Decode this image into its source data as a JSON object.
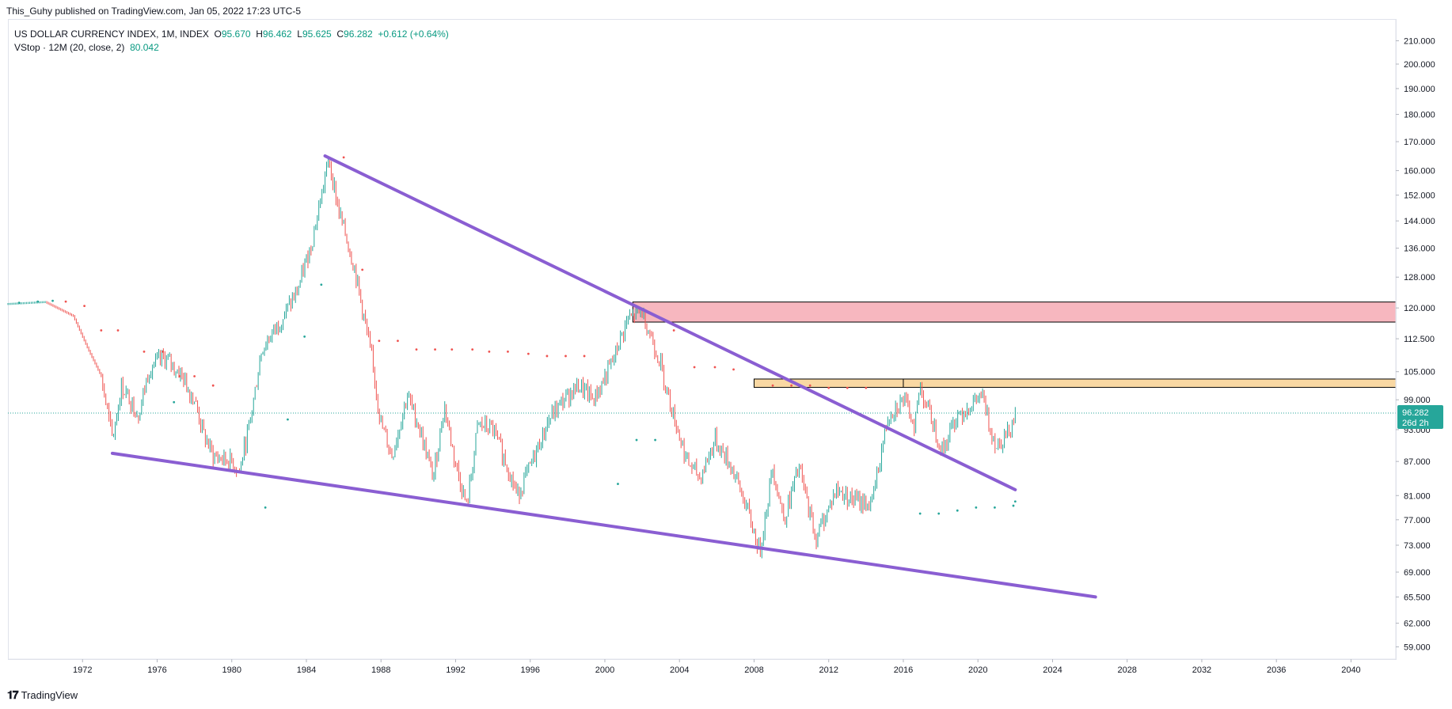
{
  "header": {
    "published_by": "This_Guhy published on TradingView.com, Jan 05, 2022 17:23 UTC-5"
  },
  "legend": {
    "symbol": "US DOLLAR CURRENCY INDEX, 1M, INDEX",
    "o_label": "O",
    "o_value": "95.670",
    "h_label": "H",
    "h_value": "96.462",
    "l_label": "L",
    "l_value": "95.625",
    "c_label": "C",
    "c_value": "96.282",
    "change": "+0.612 (+0.64%)",
    "indicator": "VStop · 12M (20, close, 2)",
    "indicator_value": "80.042"
  },
  "last_price_badge": {
    "price": "96.282",
    "countdown": "26d 2h"
  },
  "footer": {
    "brand": "TradingView",
    "logo": "𝟏𝟕"
  },
  "colors": {
    "up": "#26a69a",
    "down": "#ef5350",
    "trendline": "#8a5ed2",
    "resistance_zone": "#f7b7bf",
    "support_zone": "#f9d8a3",
    "badge": "#26a69a"
  },
  "chart_data": {
    "type": "bar",
    "title": "US DOLLAR CURRENCY INDEX",
    "interval": "1M",
    "scale": "log",
    "ylim": [
      57.5,
      213
    ],
    "xlim": [
      1968.0,
      2042.4
    ],
    "y_ticks": [
      "210.000",
      "200.000",
      "190.000",
      "180.000",
      "170.000",
      "160.000",
      "152.000",
      "144.000",
      "136.000",
      "128.000",
      "120.000",
      "112.500",
      "105.000",
      "99.000",
      "93.000",
      "87.000",
      "81.000",
      "77.000",
      "73.000",
      "69.000",
      "65.500",
      "62.000",
      "59.000"
    ],
    "x_ticks": [
      "1972",
      "1976",
      "1980",
      "1984",
      "1988",
      "1992",
      "1996",
      "2000",
      "2004",
      "2008",
      "2012",
      "2016",
      "2020",
      "2024",
      "2028",
      "2032",
      "2036",
      "2040"
    ],
    "price_path": [
      [
        1968.0,
        121.0
      ],
      [
        1970.0,
        121.5
      ],
      [
        1971.5,
        118.0
      ],
      [
        1972.3,
        110.0
      ],
      [
        1973.0,
        104.0
      ],
      [
        1973.6,
        91.0
      ],
      [
        1974.1,
        102.0
      ],
      [
        1975.0,
        96.0
      ],
      [
        1975.6,
        106.0
      ],
      [
        1976.4,
        108.0
      ],
      [
        1977.2,
        105.0
      ],
      [
        1978.0,
        99.0
      ],
      [
        1978.5,
        92.0
      ],
      [
        1979.0,
        88.0
      ],
      [
        1980.0,
        87.0
      ],
      [
        1980.4,
        85.0
      ],
      [
        1981.0,
        95.0
      ],
      [
        1981.6,
        110.0
      ],
      [
        1982.5,
        116.0
      ],
      [
        1983.5,
        124.0
      ],
      [
        1984.3,
        138.0
      ],
      [
        1985.2,
        164.0
      ],
      [
        1985.7,
        148.0
      ],
      [
        1986.6,
        130.0
      ],
      [
        1987.5,
        108.0
      ],
      [
        1988.0,
        94.0
      ],
      [
        1988.6,
        88.0
      ],
      [
        1989.4,
        100.0
      ],
      [
        1990.0,
        94.0
      ],
      [
        1990.8,
        84.0
      ],
      [
        1991.4,
        98.0
      ],
      [
        1991.9,
        88.0
      ],
      [
        1992.6,
        79.0
      ],
      [
        1993.2,
        94.0
      ],
      [
        1994.0,
        93.0
      ],
      [
        1994.8,
        86.0
      ],
      [
        1995.3,
        81.0
      ],
      [
        1996.0,
        86.0
      ],
      [
        1997.0,
        95.0
      ],
      [
        1997.8,
        99.0
      ],
      [
        1998.6,
        102.0
      ],
      [
        1999.4,
        99.0
      ],
      [
        2000.4,
        107.0
      ],
      [
        2001.2,
        117.0
      ],
      [
        2002.0,
        119.0
      ],
      [
        2002.9,
        108.0
      ],
      [
        2003.6,
        97.0
      ],
      [
        2004.4,
        87.0
      ],
      [
        2005.1,
        84.0
      ],
      [
        2005.9,
        91.0
      ],
      [
        2006.8,
        86.0
      ],
      [
        2007.6,
        79.0
      ],
      [
        2008.3,
        72.0
      ],
      [
        2009.0,
        86.0
      ],
      [
        2009.6,
        77.0
      ],
      [
        2010.4,
        86.0
      ],
      [
        2011.3,
        74.0
      ],
      [
        2012.4,
        82.0
      ],
      [
        2013.5,
        80.0
      ],
      [
        2014.3,
        79.5
      ],
      [
        2015.2,
        96.0
      ],
      [
        2016.0,
        99.0
      ],
      [
        2016.6,
        94.0
      ],
      [
        2016.9,
        102.0
      ],
      [
        2017.6,
        94.0
      ],
      [
        2018.1,
        89.0
      ],
      [
        2018.9,
        96.0
      ],
      [
        2019.7,
        98.0
      ],
      [
        2020.2,
        100.0
      ],
      [
        2020.6,
        94.0
      ],
      [
        2021.0,
        90.0
      ],
      [
        2021.6,
        92.5
      ],
      [
        2022.0,
        96.282
      ]
    ],
    "vstop_points": [
      {
        "x": 1968.6,
        "y": 121.3,
        "trend": "up"
      },
      {
        "x": 1969.6,
        "y": 121.6,
        "trend": "up"
      },
      {
        "x": 1970.4,
        "y": 121.8,
        "trend": "up"
      },
      {
        "x": 1971.1,
        "y": 121.6,
        "trend": "down"
      },
      {
        "x": 1972.1,
        "y": 120.5,
        "trend": "down"
      },
      {
        "x": 1973.0,
        "y": 114.5,
        "trend": "down"
      },
      {
        "x": 1973.9,
        "y": 114.5,
        "trend": "down"
      },
      {
        "x": 1975.3,
        "y": 109.5,
        "trend": "down"
      },
      {
        "x": 1976.3,
        "y": 109.5,
        "trend": "down"
      },
      {
        "x": 1977.2,
        "y": 104.0,
        "trend": "down"
      },
      {
        "x": 1978.0,
        "y": 104.0,
        "trend": "down"
      },
      {
        "x": 1979.0,
        "y": 102.0,
        "trend": "down"
      },
      {
        "x": 1976.9,
        "y": 98.5,
        "trend": "up"
      },
      {
        "x": 1981.8,
        "y": 79.0,
        "trend": "up"
      },
      {
        "x": 1983.0,
        "y": 95.0,
        "trend": "up"
      },
      {
        "x": 1983.9,
        "y": 113.0,
        "trend": "up"
      },
      {
        "x": 1984.8,
        "y": 126.0,
        "trend": "up"
      },
      {
        "x": 1986.0,
        "y": 164.5,
        "trend": "down"
      },
      {
        "x": 1987.0,
        "y": 130.0,
        "trend": "down"
      },
      {
        "x": 1987.9,
        "y": 112.0,
        "trend": "down"
      },
      {
        "x": 1988.9,
        "y": 112.0,
        "trend": "down"
      },
      {
        "x": 1989.9,
        "y": 110.0,
        "trend": "down"
      },
      {
        "x": 1990.9,
        "y": 110.0,
        "trend": "down"
      },
      {
        "x": 1991.8,
        "y": 110.0,
        "trend": "down"
      },
      {
        "x": 1992.9,
        "y": 110.0,
        "trend": "down"
      },
      {
        "x": 1993.8,
        "y": 109.5,
        "trend": "down"
      },
      {
        "x": 1994.8,
        "y": 109.5,
        "trend": "down"
      },
      {
        "x": 1995.9,
        "y": 109.0,
        "trend": "down"
      },
      {
        "x": 1996.9,
        "y": 108.5,
        "trend": "down"
      },
      {
        "x": 1997.9,
        "y": 108.5,
        "trend": "down"
      },
      {
        "x": 1998.9,
        "y": 108.5,
        "trend": "down"
      },
      {
        "x": 2000.7,
        "y": 83.0,
        "trend": "up"
      },
      {
        "x": 2001.7,
        "y": 91.0,
        "trend": "up"
      },
      {
        "x": 2002.7,
        "y": 91.0,
        "trend": "up"
      },
      {
        "x": 2003.7,
        "y": 114.5,
        "trend": "down"
      },
      {
        "x": 2004.8,
        "y": 106.0,
        "trend": "down"
      },
      {
        "x": 2005.9,
        "y": 106.0,
        "trend": "down"
      },
      {
        "x": 2006.9,
        "y": 105.5,
        "trend": "down"
      },
      {
        "x": 2009.0,
        "y": 102.0,
        "trend": "down"
      },
      {
        "x": 2010.0,
        "y": 102.0,
        "trend": "down"
      },
      {
        "x": 2011.0,
        "y": 102.0,
        "trend": "down"
      },
      {
        "x": 2012.0,
        "y": 101.5,
        "trend": "down"
      },
      {
        "x": 2013.0,
        "y": 101.5,
        "trend": "down"
      },
      {
        "x": 2014.0,
        "y": 101.5,
        "trend": "down"
      },
      {
        "x": 2016.9,
        "y": 78.0,
        "trend": "up"
      },
      {
        "x": 2017.9,
        "y": 78.0,
        "trend": "up"
      },
      {
        "x": 2018.9,
        "y": 78.5,
        "trend": "up"
      },
      {
        "x": 2019.9,
        "y": 79.0,
        "trend": "up"
      },
      {
        "x": 2020.9,
        "y": 79.0,
        "trend": "up"
      },
      {
        "x": 2021.9,
        "y": 79.3,
        "trend": "up"
      },
      {
        "x": 2022.0,
        "y": 80.0,
        "trend": "up"
      }
    ],
    "trendlines": [
      {
        "name": "upper",
        "from": [
          1985.0,
          165.0
        ],
        "to": [
          2022.0,
          82.0
        ]
      },
      {
        "name": "lower",
        "from": [
          1973.6,
          88.5
        ],
        "to": [
          2026.3,
          65.5
        ]
      }
    ],
    "zones": [
      {
        "name": "resistance",
        "x_from": 2001.5,
        "x_to": 2042.4,
        "y_low": 116.5,
        "y_high": 121.5
      },
      {
        "name": "support",
        "x_from": 2008.0,
        "x_to": 2042.4,
        "y_low": 101.6,
        "y_high": 103.4
      },
      {
        "name": "support-divider",
        "x_from": 2016.0,
        "x_to": 2016.0,
        "y_low": 101.6,
        "y_high": 103.4
      }
    ],
    "last_price": 96.282
  }
}
